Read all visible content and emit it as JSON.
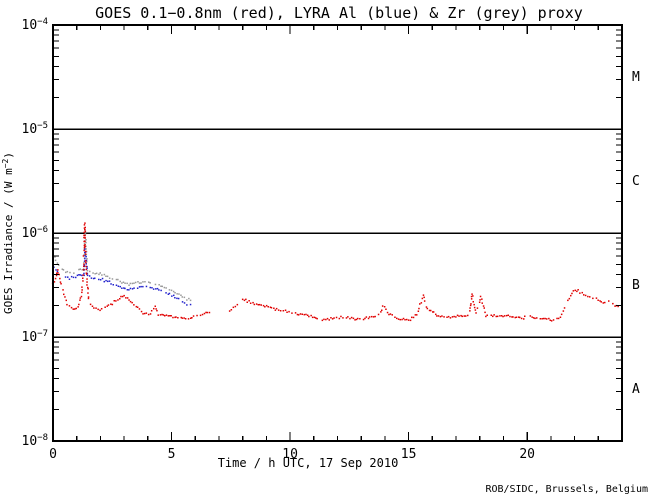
{
  "title": "GOES 0.1−0.8nm (red), LYRA Al (blue) & Zr (grey) proxy",
  "title_color": "#c00000",
  "credit": "ROB/SIDC, Brussels, Belgium",
  "chart_data": {
    "type": "scatter",
    "style": "dotted-time-series",
    "title": "GOES 0.1−0.8nm (red), LYRA Al (blue) & Zr (grey) proxy",
    "xlabel": "Time / h UTC, 17 Sep 2010",
    "ylabel_main": "GOES Irradiance / (W m",
    "ylabel_sup": "−2",
    "ylabel_end": ")",
    "x_range": [
      0,
      24
    ],
    "x_major_ticks": [
      0,
      5,
      10,
      15,
      20
    ],
    "x_minor_step": 1,
    "y_scale": "log",
    "y_range": [
      1e-08,
      0.0001
    ],
    "y_tick_base": "10",
    "y_tick_exponents": [
      -4,
      -5,
      -6,
      -7,
      -8
    ],
    "grid_hlines": [
      1e-05,
      1e-06,
      1e-07
    ],
    "legend_position": "none (series named in title)",
    "flare_classes": [
      {
        "label": "M",
        "range": [
          1e-05,
          0.0001
        ]
      },
      {
        "label": "C",
        "range": [
          1e-06,
          1e-05
        ]
      },
      {
        "label": "B",
        "range": [
          1e-07,
          1e-06
        ]
      },
      {
        "label": "A",
        "range": [
          1e-08,
          1e-07
        ]
      }
    ],
    "series": [
      {
        "id": "lyra-zr-proxy",
        "name": "LYRA Zr proxy",
        "color": "#9a9a9a",
        "segments": [
          [
            [
              0.02,
              6.3e-07
            ],
            [
              0.12,
              5.5e-07
            ],
            [
              0.25,
              4.9e-07
            ],
            [
              0.45,
              4.4e-07
            ],
            [
              0.7,
              4.15e-07
            ],
            [
              0.95,
              4.25e-07
            ],
            [
              1.15,
              4.5e-07
            ],
            [
              1.3,
              4.3e-07
            ],
            [
              1.36,
              1.05e-06
            ],
            [
              1.45,
              4.35e-07
            ],
            [
              1.7,
              4.1e-07
            ],
            [
              2.0,
              4.05e-07
            ],
            [
              2.3,
              3.8e-07
            ],
            [
              2.6,
              3.6e-07
            ],
            [
              2.9,
              3.4e-07
            ],
            [
              3.2,
              3.25e-07
            ],
            [
              3.5,
              3.35e-07
            ],
            [
              3.8,
              3.4e-07
            ],
            [
              4.1,
              3.35e-07
            ],
            [
              4.4,
              3.25e-07
            ],
            [
              4.7,
              3e-07
            ],
            [
              5.0,
              2.8e-07
            ],
            [
              5.3,
              2.55e-07
            ],
            [
              5.55,
              2.35e-07
            ],
            [
              5.8,
              2.25e-07
            ]
          ]
        ]
      },
      {
        "id": "lyra-al-proxy",
        "name": "LYRA Al proxy",
        "color": "#2222cc",
        "segments": [
          [
            [
              0.05,
              4.7e-07
            ],
            [
              0.2,
              4.3e-07
            ],
            [
              0.45,
              3.9e-07
            ],
            [
              0.7,
              3.7e-07
            ],
            [
              0.95,
              3.8e-07
            ],
            [
              1.15,
              4e-07
            ],
            [
              1.3,
              3.85e-07
            ],
            [
              1.36,
              7e-07
            ],
            [
              1.45,
              3.9e-07
            ],
            [
              1.7,
              3.65e-07
            ],
            [
              2.0,
              3.6e-07
            ],
            [
              2.3,
              3.4e-07
            ],
            [
              2.6,
              3.2e-07
            ],
            [
              2.9,
              3e-07
            ],
            [
              3.2,
              2.9e-07
            ],
            [
              3.5,
              3e-07
            ],
            [
              3.8,
              3.05e-07
            ],
            [
              4.1,
              3e-07
            ],
            [
              4.4,
              2.9e-07
            ],
            [
              4.7,
              2.7e-07
            ],
            [
              5.0,
              2.5e-07
            ],
            [
              5.3,
              2.3e-07
            ],
            [
              5.55,
              2.12e-07
            ],
            [
              5.8,
              2.05e-07
            ]
          ]
        ]
      },
      {
        "id": "goes-xray",
        "name": "GOES 0.1-0.8nm",
        "color": "#e00000",
        "segments": [
          [
            [
              0.0,
              3.3e-07
            ],
            [
              0.1,
              3.7e-07
            ],
            [
              0.2,
              4.5e-07
            ],
            [
              0.3,
              3.4e-07
            ],
            [
              0.45,
              2.6e-07
            ],
            [
              0.6,
              2.1e-07
            ],
            [
              0.85,
              1.85e-07
            ],
            [
              1.05,
              1.95e-07
            ],
            [
              1.2,
              2.5e-07
            ],
            [
              1.28,
              4.2e-07
            ],
            [
              1.34,
              1.25e-06
            ],
            [
              1.4,
              4.2e-07
            ],
            [
              1.5,
              2.3e-07
            ],
            [
              1.65,
              1.95e-07
            ],
            [
              1.9,
              1.85e-07
            ],
            [
              2.2,
              1.9e-07
            ],
            [
              2.5,
              2.1e-07
            ],
            [
              2.8,
              2.4e-07
            ],
            [
              3.0,
              2.5e-07
            ],
            [
              3.2,
              2.3e-07
            ],
            [
              3.5,
              1.95e-07
            ],
            [
              3.8,
              1.7e-07
            ],
            [
              4.1,
              1.62e-07
            ],
            [
              4.3,
              2e-07
            ],
            [
              4.45,
              1.65e-07
            ],
            [
              4.8,
              1.6e-07
            ],
            [
              5.2,
              1.55e-07
            ],
            [
              5.6,
              1.5e-07
            ],
            [
              6.0,
              1.58e-07
            ],
            [
              6.3,
              1.68e-07
            ],
            [
              6.6,
              1.72e-07
            ]
          ],
          [
            [
              7.45,
              1.78e-07
            ],
            [
              7.7,
              2e-07
            ],
            [
              8.0,
              2.3e-07
            ],
            [
              8.35,
              2.15e-07
            ],
            [
              8.8,
              2e-07
            ],
            [
              9.3,
              1.88e-07
            ],
            [
              9.8,
              1.78e-07
            ],
            [
              10.3,
              1.68e-07
            ],
            [
              10.8,
              1.58e-07
            ],
            [
              11.3,
              1.48e-07
            ],
            [
              11.8,
              1.5e-07
            ],
            [
              12.3,
              1.55e-07
            ],
            [
              12.8,
              1.5e-07
            ],
            [
              13.3,
              1.53e-07
            ],
            [
              13.8,
              1.62e-07
            ],
            [
              13.95,
              2.1e-07
            ],
            [
              14.1,
              1.68e-07
            ],
            [
              14.5,
              1.52e-07
            ],
            [
              15.0,
              1.45e-07
            ],
            [
              15.35,
              1.65e-07
            ],
            [
              15.62,
              2.5e-07
            ],
            [
              15.8,
              1.85e-07
            ],
            [
              16.2,
              1.62e-07
            ],
            [
              16.7,
              1.55e-07
            ],
            [
              17.2,
              1.58e-07
            ],
            [
              17.55,
              1.62e-07
            ],
            [
              17.68,
              2.6e-07
            ],
            [
              17.85,
              1.7e-07
            ],
            [
              18.05,
              2.45e-07
            ],
            [
              18.25,
              1.62e-07
            ],
            [
              18.7,
              1.58e-07
            ],
            [
              19.2,
              1.6e-07
            ],
            [
              19.7,
              1.53e-07
            ],
            [
              20.2,
              1.55e-07
            ],
            [
              20.7,
              1.48e-07
            ],
            [
              21.1,
              1.44e-07
            ],
            [
              21.4,
              1.55e-07
            ],
            [
              21.7,
              2.2e-07
            ],
            [
              21.95,
              2.8e-07
            ],
            [
              22.15,
              2.82e-07
            ],
            [
              22.4,
              2.55e-07
            ],
            [
              22.7,
              2.38e-07
            ],
            [
              23.0,
              2.28e-07
            ],
            [
              23.2,
              2.15e-07
            ],
            [
              23.45,
              2.22e-07
            ],
            [
              23.7,
              2e-07
            ],
            [
              24.0,
              1.9e-07
            ]
          ]
        ]
      }
    ]
  }
}
